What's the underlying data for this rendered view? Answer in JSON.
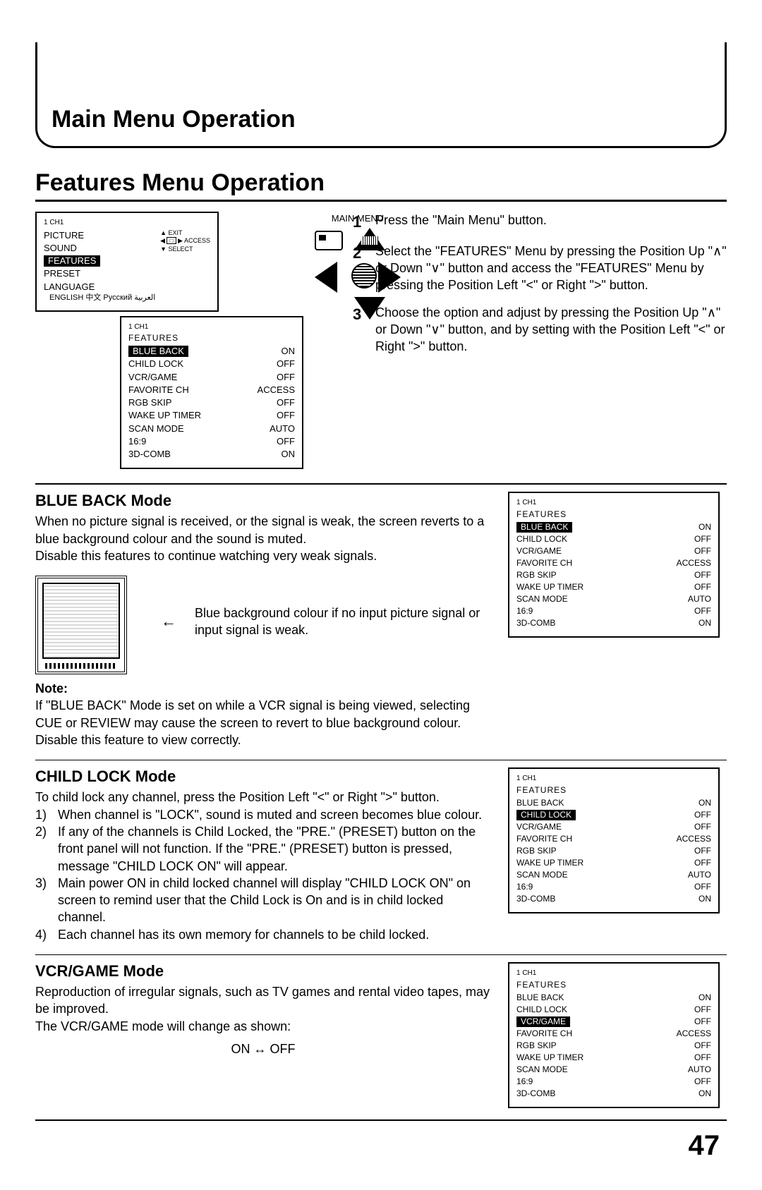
{
  "page": {
    "main_title": "Main Menu Operation",
    "section_title": "Features Menu Operation",
    "page_number": "47"
  },
  "remote": {
    "label": "MAIN MENU"
  },
  "steps": {
    "s1": {
      "num": "1",
      "text": "Press the \"Main Menu\" button."
    },
    "s2": {
      "num": "2",
      "text": "Select the \"FEATURES\" Menu by pressing the Position Up \"∧\" or Down \"∨\" button and access the \"FEATURES\" Menu by pressing the Position Left \"<\" or Right \">\" button."
    },
    "s3": {
      "num": "3",
      "text": "Choose the option and adjust by pressing the Position Up \"∧\" or Down \"∨\" button, and by setting with the Position Left \"<\" or Right \">\" button."
    }
  },
  "osd_main": {
    "ch": "1\nCH1",
    "items": {
      "picture": "PICTURE",
      "sound": "SOUND",
      "features": "FEATURES",
      "preset": "PRESET",
      "language": "LANGUAGE"
    },
    "lang_line": "ENGLISH  中文  Русский  العربية",
    "legend": {
      "exit": "EXIT",
      "access": "ACCESS",
      "select": "SELECT"
    }
  },
  "osd_features_common": {
    "ch": "1\nCH1",
    "heading": "FEATURES",
    "rows": [
      {
        "lbl": "BLUE BACK",
        "val": "ON"
      },
      {
        "lbl": "CHILD LOCK",
        "val": "OFF"
      },
      {
        "lbl": "VCR/GAME",
        "val": "OFF"
      },
      {
        "lbl": "FAVORITE CH",
        "val": "ACCESS"
      },
      {
        "lbl": "RGB SKIP",
        "val": "OFF"
      },
      {
        "lbl": "WAKE UP TIMER",
        "val": "OFF"
      },
      {
        "lbl": "SCAN MODE",
        "val": "AUTO"
      },
      {
        "lbl": "16:9",
        "val": "OFF"
      },
      {
        "lbl": "3D-COMB",
        "val": "ON"
      }
    ]
  },
  "blue_back": {
    "title": "BLUE BACK Mode",
    "p1": "When no picture signal is received, or the signal is weak, the screen reverts to a blue background colour and the sound is muted.",
    "p2": "Disable this features to continue watching very weak signals.",
    "caption": "Blue background colour if no input picture signal or input signal is weak.",
    "note_label": "Note:",
    "note_text": "If \"BLUE BACK\" Mode is set on while a VCR signal is being viewed, selecting CUE or REVIEW may cause the screen to revert to blue background colour. Disable this feature to view correctly.",
    "selected_index": 0
  },
  "child_lock": {
    "title": "CHILD LOCK Mode",
    "intro": "To child lock any channel, press the Position Left \"<\" or Right \">\" button.",
    "li1": "When channel is \"LOCK\", sound is muted and screen becomes blue colour.",
    "li2": "If any of the channels is Child Locked, the \"PRE.\" (PRESET) button on the front panel will not function. If the \"PRE.\" (PRESET) button is pressed, message \"CHILD LOCK ON\" will appear.",
    "li3": "Main power ON in child locked channel will display \"CHILD LOCK ON\" on screen to remind user that the Child Lock is On and is in child locked channel.",
    "li4": "Each channel has its own memory for channels to be child locked.",
    "selected_index": 1
  },
  "vcr_game": {
    "title": "VCR/GAME Mode",
    "p1": "Reproduction of irregular signals, such as TV games and rental video tapes, may be improved.",
    "p2": "The VCR/GAME mode will change as shown:",
    "onoff": "ON ↔ OFF",
    "selected_index": 2
  },
  "style": {
    "text_color": "#000000",
    "background": "#ffffff",
    "title_fontsize_pt": 26,
    "subtitle_fontsize_pt": 17,
    "body_fontsize_pt": 14,
    "osd_fontsize_pt": 9
  }
}
